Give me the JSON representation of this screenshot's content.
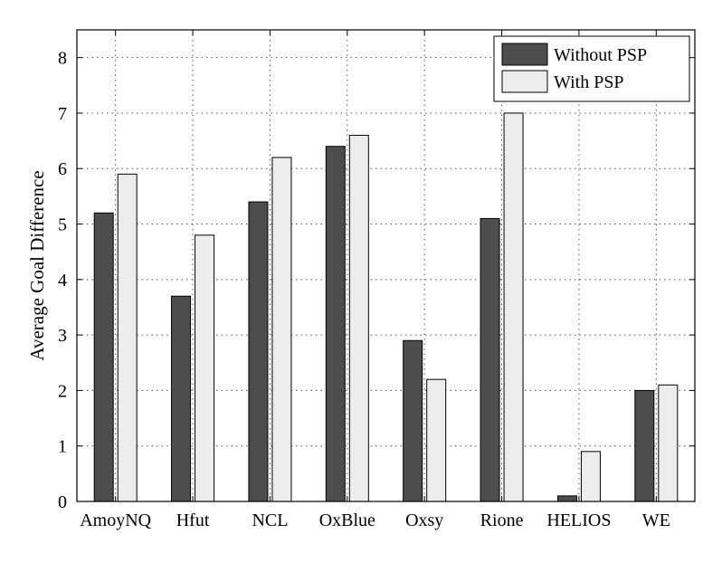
{
  "chart_data": {
    "type": "bar",
    "title": "",
    "xlabel": "",
    "ylabel": "Average Goal Difference",
    "categories": [
      "AmoyNQ",
      "Hfut",
      "NCL",
      "OxBlue",
      "Oxsy",
      "Rione",
      "HELIOS",
      "WE"
    ],
    "series": [
      {
        "name": "Without PSP",
        "color": "#4d4d4d",
        "values": [
          5.2,
          3.7,
          5.4,
          6.4,
          2.9,
          5.1,
          0.1,
          2.0
        ]
      },
      {
        "name": "With PSP",
        "color": "#ececec",
        "values": [
          5.9,
          4.8,
          6.2,
          6.6,
          2.2,
          7.0,
          0.9,
          2.1
        ]
      }
    ],
    "ylim": [
      0,
      8.5
    ],
    "yticks": [
      0,
      1,
      2,
      3,
      4,
      5,
      6,
      7,
      8
    ],
    "grid": true,
    "legend": "top-right"
  }
}
